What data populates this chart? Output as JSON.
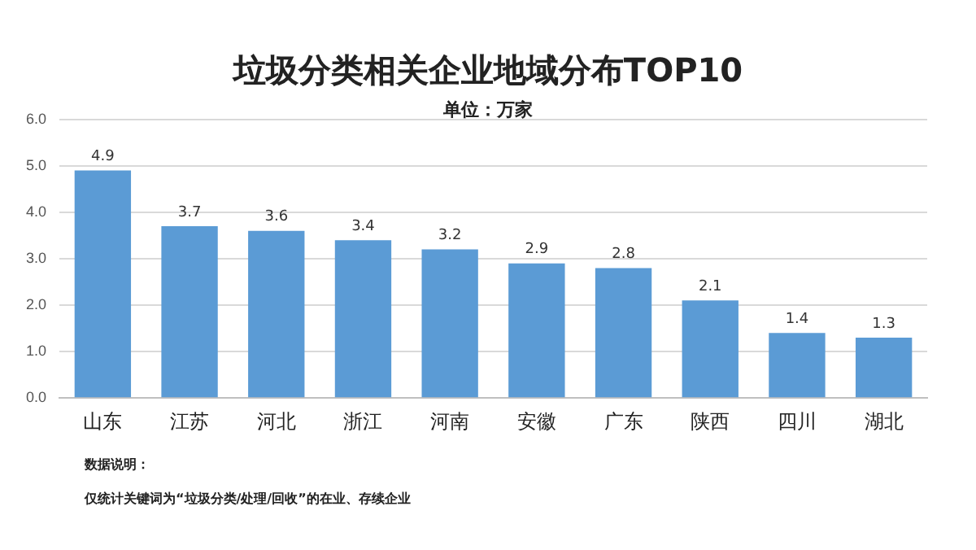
{
  "chart_data": {
    "type": "bar",
    "title": "垃圾分类相关企业地域分布TOP10",
    "subtitle": "单位：万家",
    "categories": [
      "山东",
      "江苏",
      "河北",
      "浙江",
      "河南",
      "安徽",
      "广东",
      "陕西",
      "四川",
      "湖北"
    ],
    "values": [
      4.9,
      3.7,
      3.6,
      3.4,
      3.2,
      2.9,
      2.8,
      2.1,
      1.4,
      1.3
    ],
    "color": "#5b9bd5",
    "ylim": [
      0,
      6
    ],
    "yticks": [
      {
        "value": 0,
        "label": "0.0"
      },
      {
        "value": 1,
        "label": "1.0"
      },
      {
        "value": 2,
        "label": "2.0"
      },
      {
        "value": 3,
        "label": "3.0"
      },
      {
        "value": 4,
        "label": "4.0"
      },
      {
        "value": 5,
        "label": "5.0"
      },
      {
        "value": 6,
        "label": "6.0"
      }
    ],
    "grid": "y",
    "data_labels": true,
    "legend": false,
    "annotations": [
      "数据说明：",
      "仅统计关键词为“垃圾分类/处理/回收”的在业、存续企业"
    ]
  }
}
